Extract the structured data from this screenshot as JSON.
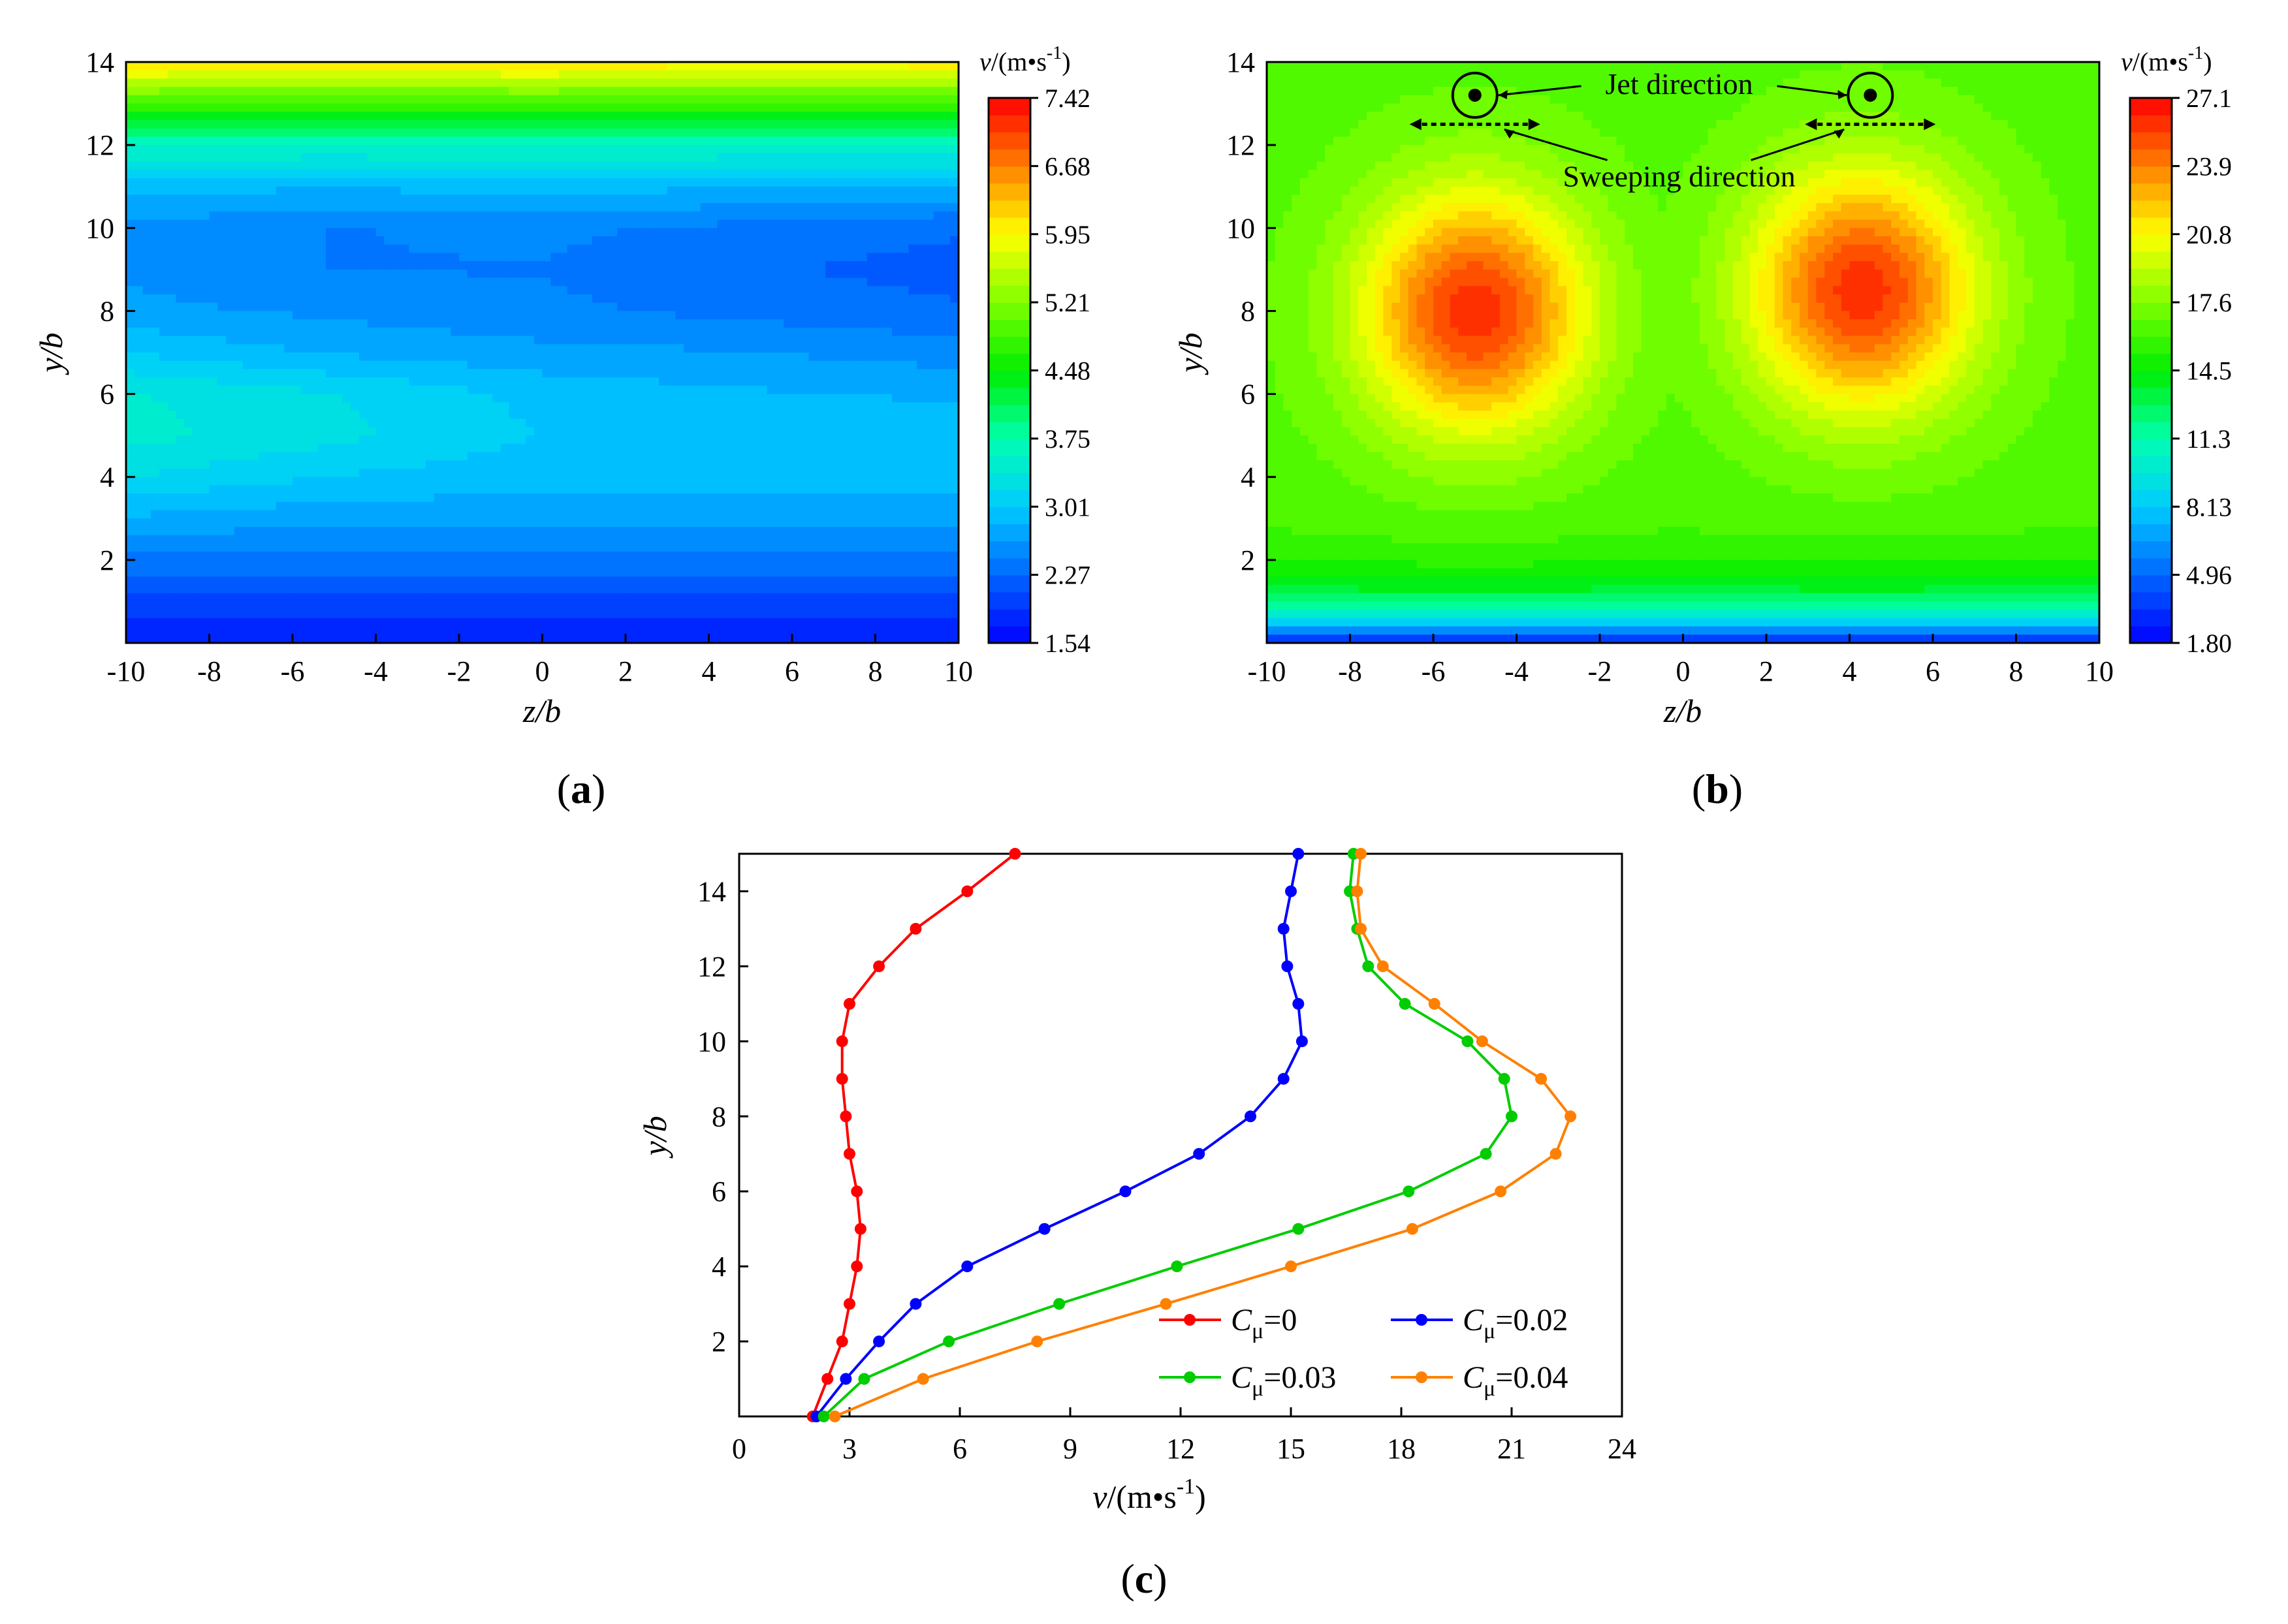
{
  "chart_data": [
    {
      "id": "a",
      "type": "heatmap",
      "panel_label_open": "(",
      "panel_label": "a",
      "panel_label_close": ")",
      "xlabel": "z/b",
      "ylabel": "y/b",
      "xlim": [
        -10,
        10
      ],
      "ylim": [
        0,
        14
      ],
      "xticks": [
        "-10",
        "-8",
        "-6",
        "-4",
        "-2",
        "0",
        "2",
        "4",
        "6",
        "8",
        "10"
      ],
      "yticks": [
        "2",
        "4",
        "6",
        "8",
        "10",
        "12",
        "14"
      ],
      "colorbar": {
        "title_var": "v",
        "title_unit": "/(m•s",
        "title_exp": "-1",
        "title_close": ")",
        "ticks": [
          "7.42",
          "6.68",
          "5.95",
          "5.21",
          "4.48",
          "3.75",
          "3.01",
          "2.27",
          "1.54"
        ],
        "min": 1.54,
        "max": 7.42
      },
      "field": {
        "profile_z": [
          -10,
          -5,
          0,
          5,
          10
        ],
        "profile_y": [
          0,
          1,
          2,
          3,
          4,
          5,
          6,
          7,
          8,
          9,
          10,
          11,
          12,
          13,
          14
        ],
        "values": [
          [
            1.7,
            1.7,
            1.7,
            1.7,
            1.7
          ],
          [
            2.0,
            2.0,
            2.0,
            2.0,
            2.0
          ],
          [
            2.4,
            2.4,
            2.4,
            2.4,
            2.4
          ],
          [
            2.8,
            2.7,
            2.7,
            2.7,
            2.7
          ],
          [
            3.2,
            3.0,
            2.9,
            2.9,
            2.9
          ],
          [
            3.45,
            3.25,
            3.0,
            2.95,
            2.9
          ],
          [
            3.4,
            3.2,
            2.95,
            2.85,
            2.8
          ],
          [
            3.0,
            2.8,
            2.7,
            2.65,
            2.55
          ],
          [
            2.7,
            2.6,
            2.5,
            2.4,
            2.3
          ],
          [
            2.6,
            2.45,
            2.45,
            2.3,
            2.2
          ],
          [
            2.6,
            2.45,
            2.5,
            2.4,
            2.3
          ],
          [
            2.9,
            2.85,
            2.9,
            2.85,
            2.8
          ],
          [
            3.6,
            3.6,
            3.6,
            3.6,
            3.6
          ],
          [
            4.8,
            4.8,
            4.8,
            4.8,
            4.8
          ],
          [
            6.2,
            6.1,
            6.2,
            6.0,
            6.1
          ]
        ]
      }
    },
    {
      "id": "b",
      "type": "heatmap",
      "panel_label_open": "(",
      "panel_label": "b",
      "panel_label_close": ")",
      "xlabel": "z/b",
      "ylabel": "y/b",
      "xlim": [
        -10,
        10
      ],
      "ylim": [
        0,
        14
      ],
      "xticks": [
        "-10",
        "-8",
        "-6",
        "-4",
        "-2",
        "0",
        "2",
        "4",
        "6",
        "8",
        "10"
      ],
      "yticks": [
        "2",
        "4",
        "6",
        "8",
        "10",
        "12",
        "14"
      ],
      "colorbar": {
        "title_var": "v",
        "title_unit": "/(m•s",
        "title_exp": "-1",
        "title_close": ")",
        "ticks": [
          "27.1",
          "23.9",
          "20.8",
          "17.6",
          "14.5",
          "11.3",
          "8.13",
          "4.96",
          "1.80"
        ],
        "min": 1.8,
        "max": 27.1
      },
      "field": {
        "background_value": 16.5,
        "jets": [
          {
            "z": -5.0,
            "y": 8.0,
            "peak": 26.0,
            "sz": 2.6,
            "sy": 2.8
          },
          {
            "z": 4.3,
            "y": 8.5,
            "peak": 26.0,
            "sz": 2.6,
            "sy": 2.8
          }
        ],
        "floor": {
          "value_at_wall": 2.0,
          "decay": 0.8
        }
      },
      "annotations": {
        "jet_direction": "Jet direction",
        "sweeping_direction": "Sweeping direction",
        "jet_positions_z": [
          -5.0,
          4.5
        ],
        "jet_y": 13.2,
        "sweep_y": 12.5
      }
    },
    {
      "id": "c",
      "type": "line",
      "panel_label_open": "(",
      "panel_label": "c",
      "panel_label_close": ")",
      "xlabel_var": "v",
      "xlabel_unit": "/(m•s",
      "xlabel_exp": "-1",
      "xlabel_close": ")",
      "ylabel": "y/b",
      "xlim": [
        0,
        24
      ],
      "ylim": [
        0,
        15
      ],
      "xticks": [
        "0",
        "3",
        "6",
        "9",
        "12",
        "15",
        "18",
        "21",
        "24"
      ],
      "yticks": [
        "2",
        "4",
        "6",
        "8",
        "10",
        "12",
        "14"
      ],
      "series": [
        {
          "name_var": "C",
          "name_sub": "μ",
          "name_rest": "=0",
          "color": "#ff0000",
          "points": [
            [
              2.0,
              0
            ],
            [
              2.4,
              1
            ],
            [
              2.8,
              2
            ],
            [
              3.0,
              3
            ],
            [
              3.2,
              4
            ],
            [
              3.3,
              5
            ],
            [
              3.2,
              6
            ],
            [
              3.0,
              7
            ],
            [
              2.9,
              8
            ],
            [
              2.8,
              9
            ],
            [
              2.8,
              10
            ],
            [
              3.0,
              11
            ],
            [
              3.8,
              12
            ],
            [
              4.8,
              13
            ],
            [
              6.2,
              14
            ],
            [
              7.5,
              15
            ]
          ]
        },
        {
          "name_var": "C",
          "name_sub": "μ",
          "name_rest": "=0.02",
          "color": "#0000ff",
          "points": [
            [
              2.1,
              0
            ],
            [
              2.9,
              1
            ],
            [
              3.8,
              2
            ],
            [
              4.8,
              3
            ],
            [
              6.2,
              4
            ],
            [
              8.3,
              5
            ],
            [
              10.5,
              6
            ],
            [
              12.5,
              7
            ],
            [
              13.9,
              8
            ],
            [
              14.8,
              9
            ],
            [
              15.3,
              10
            ],
            [
              15.2,
              11
            ],
            [
              14.9,
              12
            ],
            [
              14.8,
              13
            ],
            [
              15.0,
              14
            ],
            [
              15.2,
              15
            ]
          ]
        },
        {
          "name_var": "C",
          "name_sub": "μ",
          "name_rest": "=0.03",
          "color": "#00cc00",
          "points": [
            [
              2.3,
              0
            ],
            [
              3.4,
              1
            ],
            [
              5.7,
              2
            ],
            [
              8.7,
              3
            ],
            [
              11.9,
              4
            ],
            [
              15.2,
              5
            ],
            [
              18.2,
              6
            ],
            [
              20.3,
              7
            ],
            [
              21.0,
              8
            ],
            [
              20.8,
              9
            ],
            [
              19.8,
              10
            ],
            [
              18.1,
              11
            ],
            [
              17.1,
              12
            ],
            [
              16.8,
              13
            ],
            [
              16.6,
              14
            ],
            [
              16.7,
              15
            ]
          ]
        },
        {
          "name_var": "C",
          "name_sub": "μ",
          "name_rest": "=0.04",
          "color": "#ff8000",
          "points": [
            [
              2.6,
              0
            ],
            [
              5.0,
              1
            ],
            [
              8.1,
              2
            ],
            [
              11.6,
              3
            ],
            [
              15.0,
              4
            ],
            [
              18.3,
              5
            ],
            [
              20.7,
              6
            ],
            [
              22.2,
              7
            ],
            [
              22.6,
              8
            ],
            [
              21.8,
              9
            ],
            [
              20.2,
              10
            ],
            [
              18.9,
              11
            ],
            [
              17.5,
              12
            ],
            [
              16.9,
              13
            ],
            [
              16.8,
              14
            ],
            [
              16.9,
              15
            ]
          ]
        }
      ]
    }
  ]
}
